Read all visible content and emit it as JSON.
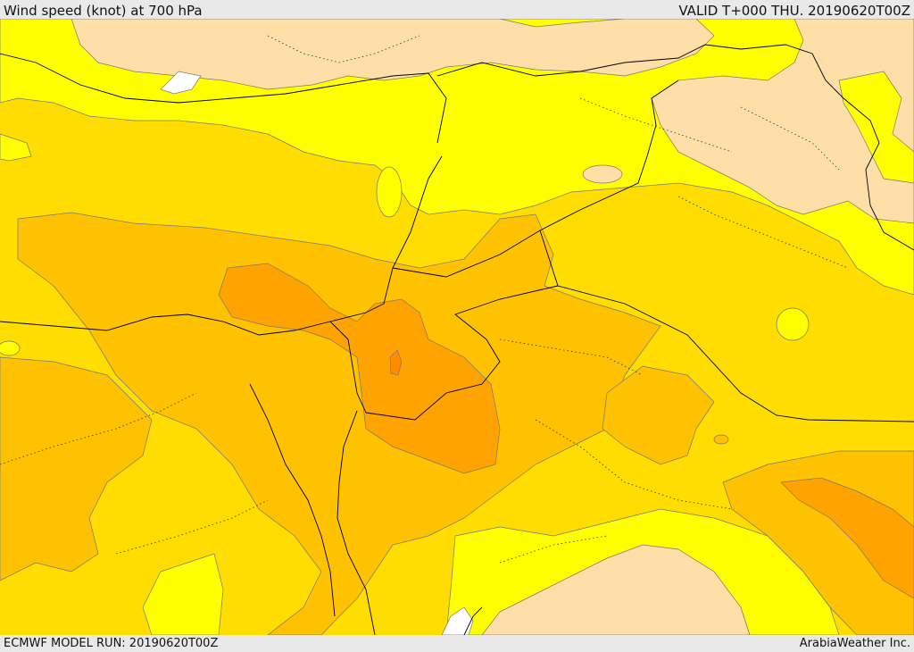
{
  "header": {
    "title": "Wind speed (knot) at 700 hPa",
    "valid": "VALID T+000 THU. 20190620T00Z"
  },
  "footer": {
    "model_run": "ECMWF MODEL RUN: 20190620T00Z",
    "credit": "ArabiaWeather Inc."
  },
  "colors": {
    "land_low": "#ffdfa8",
    "band_yellow": "#ffff00",
    "band_gold": "#ffdd00",
    "band_amber": "#ffc200",
    "band_orange": "#ffa300",
    "band_dark_orange": "#ff8c00",
    "sea_white": "#ffffff",
    "border_line": "#000000"
  }
}
